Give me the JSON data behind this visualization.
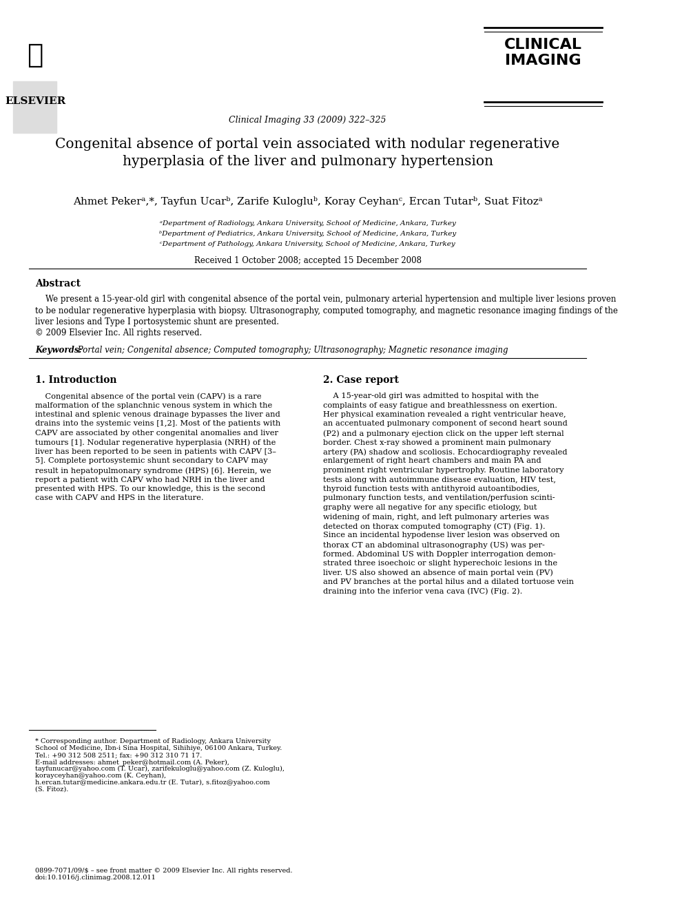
{
  "bg_color": "#ffffff",
  "journal_name": "Clinical Imaging 33 (2009) 322–325",
  "journal_brand": "CLINICAL\nIMAGING",
  "publisher": "ELSEVIER",
  "paper_title": "Congenital absence of portal vein associated with nodular regenerative\nhyperplasia of the liver and pulmonary hypertension",
  "authors": "Ahmet Pekerᵃ,*, Tayfun Ucarᵇ, Zarife Kulogluᵇ, Koray Ceyhanᶜ, Ercan Tutarᵇ, Suat Fitozᵃ",
  "affil_a": "ᵃDepartment of Radiology, Ankara University, School of Medicine, Ankara, Turkey",
  "affil_b": "ᵇDepartment of Pediatrics, Ankara University, School of Medicine, Ankara, Turkey",
  "affil_c": "ᶜDepartment of Pathology, Ankara University, School of Medicine, Ankara, Turkey",
  "received": "Received 1 October 2008; accepted 15 December 2008",
  "abstract_title": "Abstract",
  "abstract_text": "    We present a 15-year-old girl with congenital absence of the portal vein, pulmonary arterial hypertension and multiple liver lesions proven\nto be nodular regenerative hyperplasia with biopsy. Ultrasonography, computed tomography, and magnetic resonance imaging findings of the\nliver lesions and Type I portosystemic shunt are presented.\n© 2009 Elsevier Inc. All rights reserved.",
  "keywords_label": "Keywords:",
  "keywords_text": " Portal vein; Congenital absence; Computed tomography; Ultrasonography; Magnetic resonance imaging",
  "section1_title": "1. Introduction",
  "section1_text": "    Congenital absence of the portal vein (CAPV) is a rare\nmalformation of the splanchnic venous system in which the\nintestinal and splenic venous drainage bypasses the liver and\ndrains into the systemic veins [1,2]. Most of the patients with\nCAPV are associated by other congenital anomalies and liver\ntumours [1]. Nodular regenerative hyperplasia (NRH) of the\nliver has been reported to be seen in patients with CAPV [3–\n5]. Complete portosystemic shunt secondary to CAPV may\nresult in hepatopulmonary syndrome (HPS) [6]. Herein, we\nreport a patient with CAPV who had NRH in the liver and\npresented with HPS. To our knowledge, this is the second\ncase with CAPV and HPS in the literature.",
  "section2_title": "2. Case report",
  "section2_text": "    A 15-year-old girl was admitted to hospital with the\ncomplaints of easy fatigue and breathlessness on exertion.\nHer physical examination revealed a right ventricular heave,\nan accentuated pulmonary component of second heart sound\n(P2) and a pulmonary ejection click on the upper left sternal\nborder. Chest x-ray showed a prominent main pulmonary\nartery (PA) shadow and scoliosis. Echocardiography revealed\nenlargement of right heart chambers and main PA and\nprominent right ventricular hypertrophy. Routine laboratory\ntests along with autoimmune disease evaluation, HIV test,\nthyroid function tests with antithyroid autoantibodies,\npulmonary function tests, and ventilation/perfusion scinti-\ngraphy were all negative for any specific etiology, but\nwidening of main, right, and left pulmonary arteries was\ndetected on thorax computed tomography (CT) (Fig. 1).\nSince an incidental hypodense liver lesion was observed on\nthorax CT an abdominal ultrasonography (US) was per-\nformed. Abdominal US with Doppler interrogation demon-\nstrated three isoechoic or slight hyperechoic lesions in the\nliver. US also showed an absence of main portal vein (PV)\nand PV branches at the portal hilus and a dilated tortuose vein\ndraining into the inferior vena cava (IVC) (Fig. 2).",
  "footnote_text": "* Corresponding author. Department of Radiology, Ankara University\nSchool of Medicine, Ibn-i Sina Hospital, Sihihiye, 06100 Ankara, Turkey.\nTel.: +90 312 508 2511; fax: +90 312 310 71 17.\nE-mail addresses: ahmet_peker@hotmail.com (A. Peker),\ntayfunucar@yahoo.com (T. Ucar), zarifekuloglu@yahoo.com (Z. Kuloglu),\nkorayceyhan@yahoo.com (K. Ceyhan),\nh.ercan.tutar@medicine.ankara.edu.tr (E. Tutar), s.fitoz@yahoo.com\n(S. Fitoz).",
  "doi_text": "0899-7071/09/$ – see front matter © 2009 Elsevier Inc. All rights reserved.\ndoi:10.1016/j.clinimag.2008.12.011"
}
